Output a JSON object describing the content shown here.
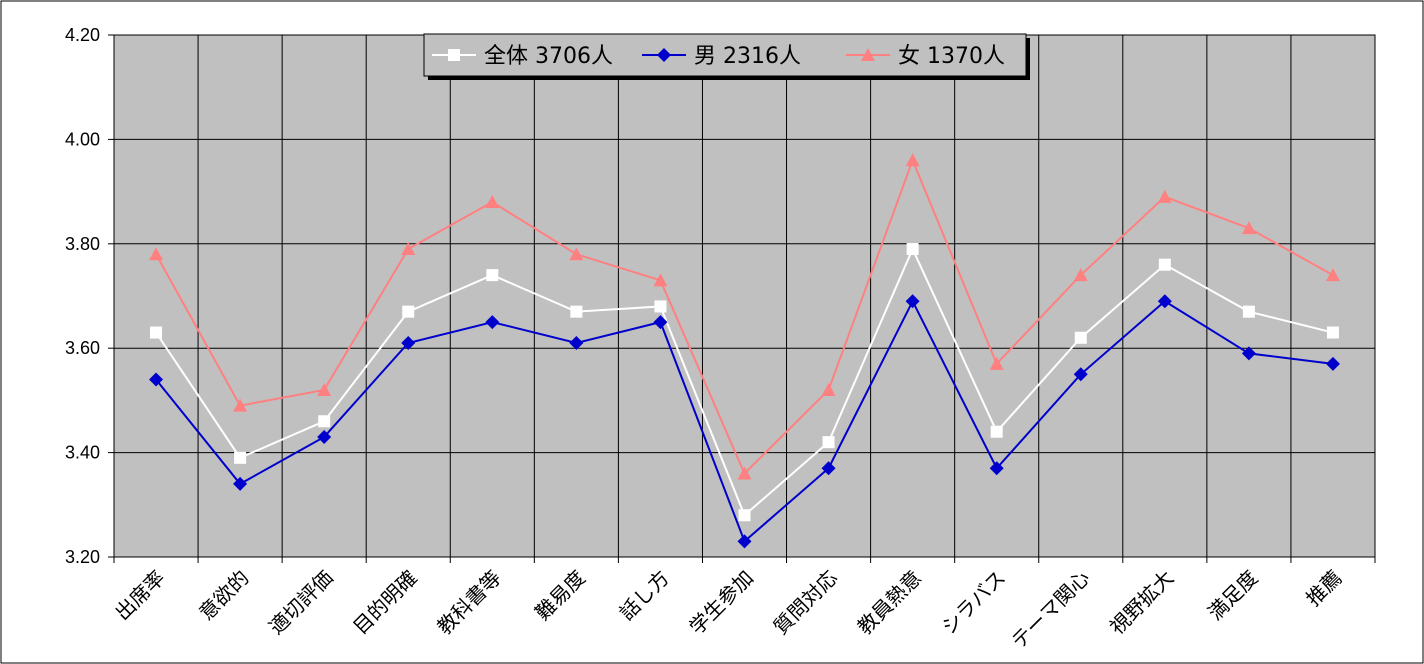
{
  "chart_data": {
    "type": "line",
    "categories": [
      "出席率",
      "意欲的",
      "適切評価",
      "目的明確",
      "教科書等",
      "難易度",
      "話し方",
      "学生参加",
      "質問対応",
      "教員熱意",
      "シラバス",
      "テーマ関心",
      "視野拡大",
      "満足度",
      "推薦"
    ],
    "ylim": [
      3.2,
      4.2
    ],
    "yticks": [
      "3.20",
      "3.40",
      "3.60",
      "3.80",
      "4.00",
      "4.20"
    ],
    "grid": true,
    "legend_position": "top-center",
    "plot_background": "#c0c0c0",
    "series": [
      {
        "name": "全体 3706人",
        "color": "#ffffff",
        "marker": "square",
        "values": [
          3.63,
          3.39,
          3.46,
          3.67,
          3.74,
          3.67,
          3.68,
          3.28,
          3.42,
          3.79,
          3.44,
          3.62,
          3.76,
          3.67,
          3.63
        ]
      },
      {
        "name": "男 2316人",
        "color": "#0000cc",
        "marker": "diamond",
        "values": [
          3.54,
          3.34,
          3.43,
          3.61,
          3.65,
          3.61,
          3.65,
          3.23,
          3.37,
          3.69,
          3.37,
          3.55,
          3.69,
          3.59,
          3.57
        ]
      },
      {
        "name": "女 1370人",
        "color": "#ff8080",
        "marker": "triangle",
        "values": [
          3.78,
          3.49,
          3.52,
          3.79,
          3.88,
          3.78,
          3.73,
          3.36,
          3.52,
          3.96,
          3.57,
          3.74,
          3.89,
          3.83,
          3.74
        ]
      }
    ]
  }
}
